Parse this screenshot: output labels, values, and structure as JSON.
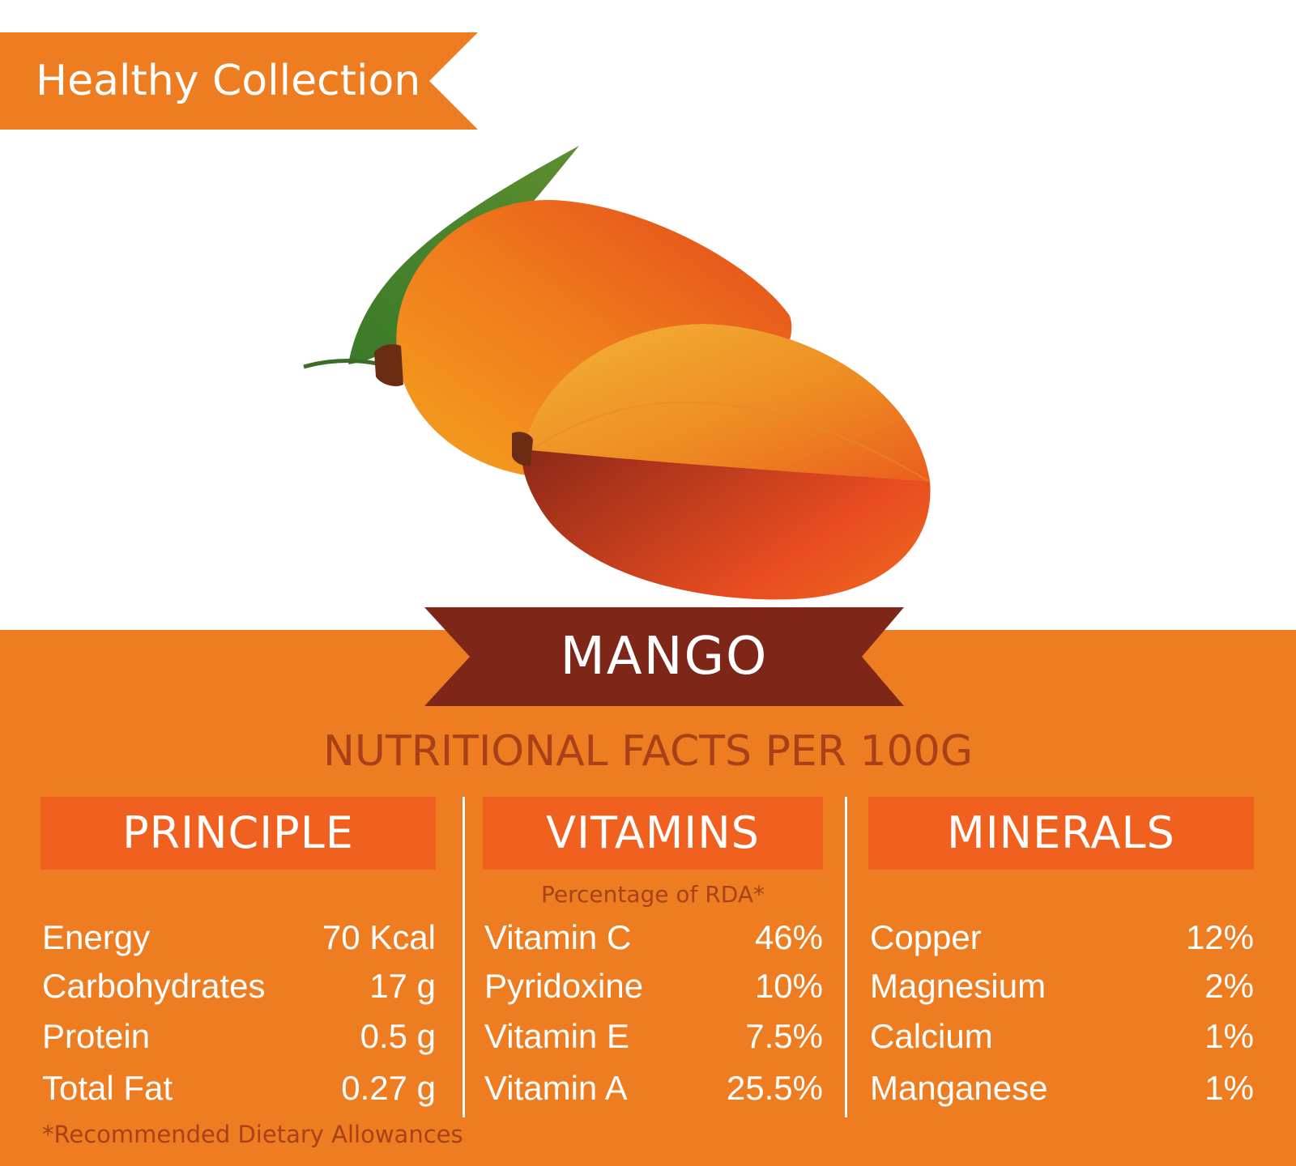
{
  "banner": {
    "label": "Healthy Collection"
  },
  "title": "MANGO",
  "subtitle": "NUTRITIONAL FACTS PER 100G",
  "colors": {
    "orange": "#ee7d22",
    "header_orange": "#f0601f",
    "ribbon_brown": "#7e2718",
    "accent_text": "#a84018"
  },
  "illustration": {
    "icon": "mango-illustration"
  },
  "sections": {
    "principle": {
      "header": "PRINCIPLE",
      "rows": [
        {
          "label": "Energy",
          "value": "70 Kcal"
        },
        {
          "label": "Carbohydrates",
          "value": "17 g"
        },
        {
          "label": "Protein",
          "value": "0.5 g"
        },
        {
          "label": "Total Fat",
          "value": "0.27 g"
        }
      ]
    },
    "vitamins": {
      "header": "VITAMINS",
      "note": "Percentage of RDA*",
      "rows": [
        {
          "label": "Vitamin C",
          "value": "46%"
        },
        {
          "label": "Pyridoxine",
          "value": "10%"
        },
        {
          "label": "Vitamin E",
          "value": "7.5%"
        },
        {
          "label": "Vitamin A",
          "value": "25.5%"
        }
      ]
    },
    "minerals": {
      "header": "MINERALS",
      "rows": [
        {
          "label": "Copper",
          "value": "12%"
        },
        {
          "label": "Magnesium",
          "value": "2%"
        },
        {
          "label": "Calcium",
          "value": "1%"
        },
        {
          "label": "Manganese",
          "value": "1%"
        }
      ]
    }
  },
  "footnote": "*Recommended Dietary Allowances"
}
